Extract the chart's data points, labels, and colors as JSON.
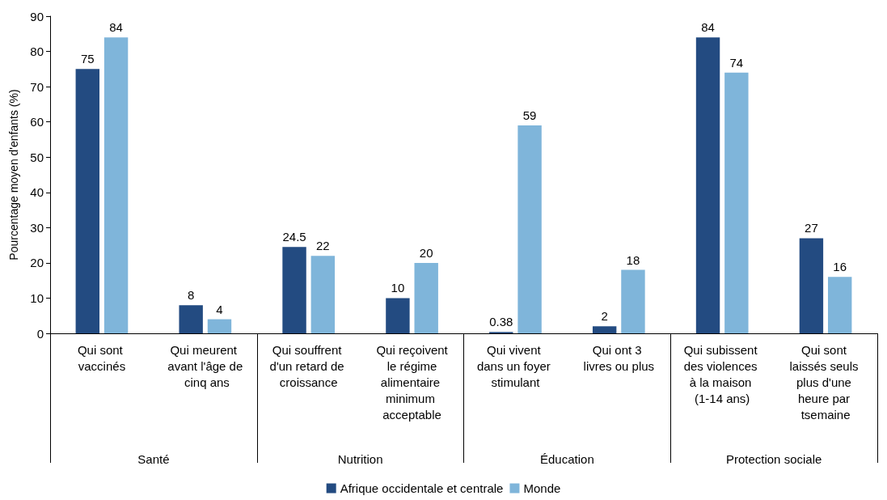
{
  "chart_data": {
    "type": "bar",
    "ylabel": "Pourcentage moyen d'enfants (%)",
    "categories": [
      "Qui sont vaccinés",
      "Qui meurent avant l'âge de cinq ans",
      "Qui souffrent d'un retard de croissance",
      "Qui reçoivent le régime alimentaire minimum acceptable",
      "Qui vivent dans un foyer stimulant",
      "Qui ont 3 livres ou plus",
      "Qui subissent des violences à la maison (1-14 ans)",
      "Qui sont laissés seuls plus d'une heure par tsemaine"
    ],
    "series": [
      {
        "name": "Afrique occidentale et centrale",
        "color": "#234b81",
        "values": [
          75,
          8,
          24.5,
          10,
          0.38,
          2,
          84,
          27
        ]
      },
      {
        "name": "Monde",
        "color": "#7fb5da",
        "values": [
          84,
          4,
          22,
          20,
          59,
          18,
          74,
          16
        ]
      }
    ],
    "annotations": [
      "Santé",
      "Nutrition",
      "Éducation",
      "Protection sociale"
    ],
    "ylim": [
      0,
      90
    ],
    "yticks": [
      0,
      10,
      20,
      30,
      40,
      50,
      60,
      70,
      80,
      90
    ],
    "grid": false,
    "legend": "bottom",
    "data_labels": true
  }
}
